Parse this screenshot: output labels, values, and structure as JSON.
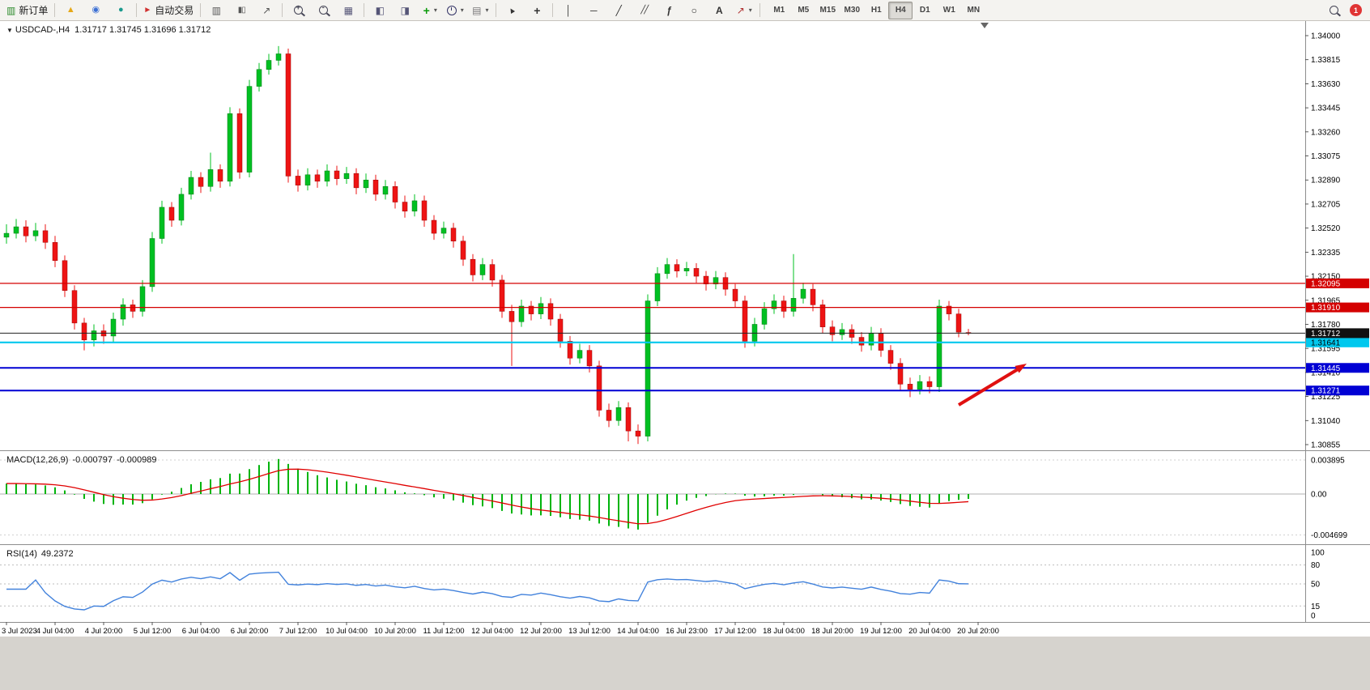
{
  "icons": {
    "new_order": "▥",
    "wizard": "▲",
    "profile": "◉",
    "community": "●",
    "auto_trading": "►",
    "bar_chart": "▥",
    "candle_chart": "▮▯",
    "line_chart": "↗",
    "tile": "▦",
    "chart_win": "◧",
    "data_win": "◨",
    "add_indicator": "+",
    "template": "▤",
    "cursor": "▲",
    "crosshair": "+",
    "vline": "│",
    "hline": "─",
    "trend": "╱",
    "channel": "╱╱",
    "fibo": "ƒ",
    "shape": "○",
    "text": "A",
    "arrows": "↗",
    "caret": "▾"
  },
  "toolbar": {
    "new_order": "新订单",
    "auto_trading": "自动交易",
    "timeframes": [
      "M1",
      "M5",
      "M15",
      "M30",
      "H1",
      "H4",
      "D1",
      "W1",
      "MN"
    ],
    "active_timeframe": "H4",
    "notification_badge": "1"
  },
  "chart": {
    "symbol_marker": "▼",
    "symbol_title": "USDCAD-,H4",
    "ohlc_readout": "1.31717 1.31745 1.31696 1.31712",
    "price_axis_labels": [
      "1.34000",
      "1.33815",
      "1.33630",
      "1.33445",
      "1.33260",
      "1.33075",
      "1.32890",
      "1.32705",
      "1.32520",
      "1.32335",
      "1.32150",
      "1.31965",
      "1.31780",
      "1.31595",
      "1.31410",
      "1.31225",
      "1.31040",
      "1.30855"
    ],
    "current_price": {
      "label": "1.31712",
      "price": 1.31712,
      "color": "#222222"
    },
    "levels": [
      {
        "label": "1.32095",
        "price": 1.32095,
        "color": "#d40000",
        "text_color": "#ffffff",
        "width": 1.2
      },
      {
        "label": "1.31910",
        "price": 1.3191,
        "color": "#d40000",
        "text_color": "#ffffff",
        "width": 1.2
      },
      {
        "label": "1.31641",
        "price": 1.31641,
        "color": "#00c8ee",
        "text_color": "#000000",
        "width": 2.2
      },
      {
        "label": "1.31445",
        "price": 1.31445,
        "color": "#0000d4",
        "text_color": "#ffffff",
        "width": 2
      },
      {
        "label": "1.31271",
        "price": 1.31271,
        "color": "#0000d4",
        "text_color": "#ffffff",
        "width": 2
      }
    ],
    "time_axis_labels": [
      "3 Jul 2023",
      "4 Jul 04:00",
      "4 Jul 20:00",
      "5 Jul 12:00",
      "6 Jul 04:00",
      "6 Jul 20:00",
      "7 Jul 12:00",
      "10 Jul 04:00",
      "10 Jul 20:00",
      "11 Jul 12:00",
      "12 Jul 04:00",
      "12 Jul 20:00",
      "13 Jul 12:00",
      "14 Jul 04:00",
      "16 Jul 23:00",
      "17 Jul 12:00",
      "18 Jul 04:00",
      "18 Jul 20:00",
      "19 Jul 12:00",
      "20 Jul 04:00",
      "20 Jul 20:00"
    ],
    "annotation_arrow": {
      "color": "#e01010"
    }
  },
  "macd": {
    "label": "MACD(12,26,9)",
    "value1": "-0.000797",
    "value2": "-0.000989",
    "axis_labels": [
      "0.003895",
      "0.00",
      "-0.004699"
    ],
    "histogram_color": "#00b40c",
    "signal_color": "#e00000"
  },
  "rsi": {
    "label": "RSI(14)",
    "value": "49.2372",
    "axis_labels": [
      "100",
      "80",
      "50",
      "15",
      "0"
    ],
    "dashed_levels": [
      80,
      50,
      15
    ],
    "line_color": "#4282dc"
  },
  "chart_data": {
    "type": "candlestick",
    "symbol": "USDCAD",
    "timeframe": "H4",
    "bull_color": "#00c022",
    "bear_color": "#ee1414",
    "candles_ohlc": [
      [
        1.3245,
        1.3255,
        1.324,
        1.3248
      ],
      [
        1.3248,
        1.3259,
        1.3244,
        1.3253
      ],
      [
        1.3253,
        1.3258,
        1.3241,
        1.3246
      ],
      [
        1.3246,
        1.3256,
        1.3242,
        1.325
      ],
      [
        1.325,
        1.3255,
        1.3236,
        1.3241
      ],
      [
        1.3241,
        1.3246,
        1.3222,
        1.3227
      ],
      [
        1.3227,
        1.3231,
        1.3199,
        1.3204
      ],
      [
        1.3204,
        1.3208,
        1.3174,
        1.3179
      ],
      [
        1.3179,
        1.3183,
        1.3158,
        1.3166
      ],
      [
        1.3166,
        1.3178,
        1.3161,
        1.3173
      ],
      [
        1.3173,
        1.3178,
        1.3163,
        1.3169
      ],
      [
        1.3169,
        1.3187,
        1.3164,
        1.3182
      ],
      [
        1.3182,
        1.3198,
        1.3177,
        1.3193
      ],
      [
        1.3193,
        1.3197,
        1.3183,
        1.3188
      ],
      [
        1.3188,
        1.3212,
        1.3184,
        1.3207
      ],
      [
        1.3207,
        1.3249,
        1.3203,
        1.3244
      ],
      [
        1.3244,
        1.3273,
        1.324,
        1.3268
      ],
      [
        1.3268,
        1.3272,
        1.3253,
        1.3258
      ],
      [
        1.3258,
        1.3283,
        1.3254,
        1.3278
      ],
      [
        1.3278,
        1.3296,
        1.3274,
        1.3291
      ],
      [
        1.3291,
        1.3295,
        1.3279,
        1.3284
      ],
      [
        1.3284,
        1.331,
        1.328,
        1.3297
      ],
      [
        1.3297,
        1.3301,
        1.3283,
        1.3288
      ],
      [
        1.3288,
        1.3345,
        1.3284,
        1.334
      ],
      [
        1.334,
        1.3344,
        1.329,
        1.3295
      ],
      [
        1.3295,
        1.3366,
        1.3291,
        1.3361
      ],
      [
        1.3361,
        1.3379,
        1.3357,
        1.3374
      ],
      [
        1.3374,
        1.3386,
        1.337,
        1.3381
      ],
      [
        1.3381,
        1.3392,
        1.3377,
        1.3386
      ],
      [
        1.3386,
        1.339,
        1.3287,
        1.3292
      ],
      [
        1.3292,
        1.3297,
        1.328,
        1.3285
      ],
      [
        1.3285,
        1.3298,
        1.3281,
        1.3293
      ],
      [
        1.3293,
        1.3297,
        1.3283,
        1.3288
      ],
      [
        1.3288,
        1.3301,
        1.3284,
        1.3296
      ],
      [
        1.3296,
        1.33,
        1.3285,
        1.329
      ],
      [
        1.329,
        1.3299,
        1.3286,
        1.3294
      ],
      [
        1.3294,
        1.3298,
        1.3278,
        1.3283
      ],
      [
        1.3283,
        1.3294,
        1.3279,
        1.3289
      ],
      [
        1.3289,
        1.3293,
        1.3273,
        1.3278
      ],
      [
        1.3278,
        1.3289,
        1.3274,
        1.3284
      ],
      [
        1.3284,
        1.3288,
        1.3267,
        1.3272
      ],
      [
        1.3272,
        1.3277,
        1.326,
        1.3265
      ],
      [
        1.3265,
        1.3278,
        1.3261,
        1.3273
      ],
      [
        1.3273,
        1.3277,
        1.3253,
        1.3258
      ],
      [
        1.3258,
        1.3262,
        1.3243,
        1.3248
      ],
      [
        1.3248,
        1.3257,
        1.3244,
        1.3252
      ],
      [
        1.3252,
        1.3256,
        1.3237,
        1.3242
      ],
      [
        1.3242,
        1.3246,
        1.3223,
        1.3228
      ],
      [
        1.3228,
        1.3232,
        1.3211,
        1.3216
      ],
      [
        1.3216,
        1.3229,
        1.3212,
        1.3224
      ],
      [
        1.3224,
        1.3228,
        1.3207,
        1.3212
      ],
      [
        1.3212,
        1.3216,
        1.3183,
        1.3188
      ],
      [
        1.3188,
        1.3193,
        1.3146,
        1.318
      ],
      [
        1.318,
        1.3197,
        1.3176,
        1.3192
      ],
      [
        1.3192,
        1.3196,
        1.3181,
        1.3186
      ],
      [
        1.3186,
        1.3199,
        1.3182,
        1.3194
      ],
      [
        1.3194,
        1.3198,
        1.3177,
        1.3182
      ],
      [
        1.3182,
        1.3186,
        1.316,
        1.3165
      ],
      [
        1.3165,
        1.3169,
        1.3147,
        1.3152
      ],
      [
        1.3152,
        1.3163,
        1.3148,
        1.3158
      ],
      [
        1.3158,
        1.3162,
        1.3141,
        1.3146
      ],
      [
        1.3146,
        1.315,
        1.3107,
        1.3112
      ],
      [
        1.3112,
        1.3117,
        1.3099,
        1.3104
      ],
      [
        1.3104,
        1.3119,
        1.31,
        1.3114
      ],
      [
        1.3114,
        1.3118,
        1.3088,
        1.3096
      ],
      [
        1.3096,
        1.3101,
        1.3086,
        1.3092
      ],
      [
        1.3092,
        1.3201,
        1.3088,
        1.3196
      ],
      [
        1.3196,
        1.3222,
        1.3192,
        1.3217
      ],
      [
        1.3217,
        1.3229,
        1.3213,
        1.3224
      ],
      [
        1.3224,
        1.3228,
        1.3214,
        1.3219
      ],
      [
        1.3219,
        1.3226,
        1.3215,
        1.3221
      ],
      [
        1.3221,
        1.3225,
        1.321,
        1.3215
      ],
      [
        1.3215,
        1.3219,
        1.3204,
        1.3209
      ],
      [
        1.3209,
        1.3219,
        1.3205,
        1.3214
      ],
      [
        1.3214,
        1.3218,
        1.32,
        1.3205
      ],
      [
        1.3205,
        1.3209,
        1.3191,
        1.3196
      ],
      [
        1.3196,
        1.32,
        1.316,
        1.3165
      ],
      [
        1.3165,
        1.3183,
        1.3161,
        1.3178
      ],
      [
        1.3178,
        1.3195,
        1.3174,
        1.319
      ],
      [
        1.319,
        1.3201,
        1.3186,
        1.3196
      ],
      [
        1.3196,
        1.32,
        1.3183,
        1.3188
      ],
      [
        1.3188,
        1.3232,
        1.3184,
        1.3198
      ],
      [
        1.3198,
        1.321,
        1.3194,
        1.3205
      ],
      [
        1.3205,
        1.3209,
        1.3188,
        1.3193
      ],
      [
        1.3193,
        1.3197,
        1.3171,
        1.3176
      ],
      [
        1.3176,
        1.3181,
        1.3165,
        1.317
      ],
      [
        1.317,
        1.3179,
        1.3166,
        1.3174
      ],
      [
        1.3174,
        1.3178,
        1.3163,
        1.3168
      ],
      [
        1.3168,
        1.3172,
        1.3157,
        1.3162
      ],
      [
        1.3162,
        1.3176,
        1.3158,
        1.3171
      ],
      [
        1.3171,
        1.3175,
        1.3153,
        1.3158
      ],
      [
        1.3158,
        1.3162,
        1.3143,
        1.3148
      ],
      [
        1.3148,
        1.3152,
        1.3127,
        1.3132
      ],
      [
        1.3132,
        1.3137,
        1.3122,
        1.3128
      ],
      [
        1.3128,
        1.3139,
        1.3124,
        1.3134
      ],
      [
        1.3134,
        1.3138,
        1.3125,
        1.313
      ],
      [
        1.313,
        1.3197,
        1.3126,
        1.3192
      ],
      [
        1.3192,
        1.3196,
        1.3181,
        1.3186
      ],
      [
        1.3186,
        1.319,
        1.3168,
        1.3172
      ],
      [
        1.31717,
        1.31745,
        1.31696,
        1.31712
      ]
    ]
  }
}
